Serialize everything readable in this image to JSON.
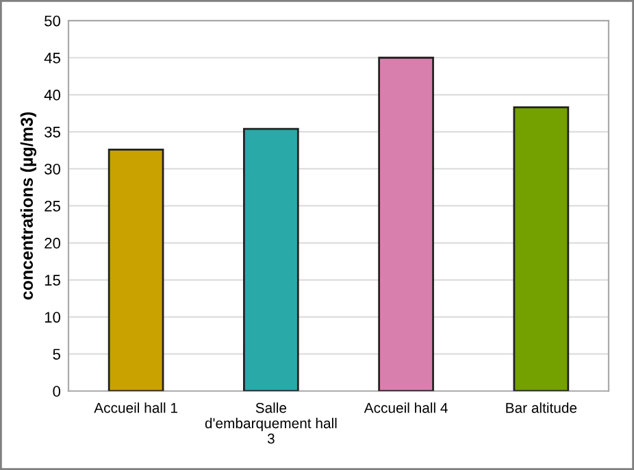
{
  "chart_data": {
    "type": "bar",
    "ylabel": "concentrations (µg/m3)",
    "categories": [
      "Accueil hall 1",
      "Salle\nd'embarquement hall\n3",
      "Accueil hall 4",
      "Bar altitude"
    ],
    "values": [
      32.6,
      35.4,
      45,
      38.3
    ],
    "colors": [
      "#c9a200",
      "#2aa9a9",
      "#d97fae",
      "#74a000"
    ],
    "ylim": [
      0,
      50
    ],
    "yticks": [
      0,
      5,
      10,
      15,
      20,
      25,
      30,
      35,
      40,
      45,
      50
    ],
    "grid": "y",
    "legend": false
  }
}
